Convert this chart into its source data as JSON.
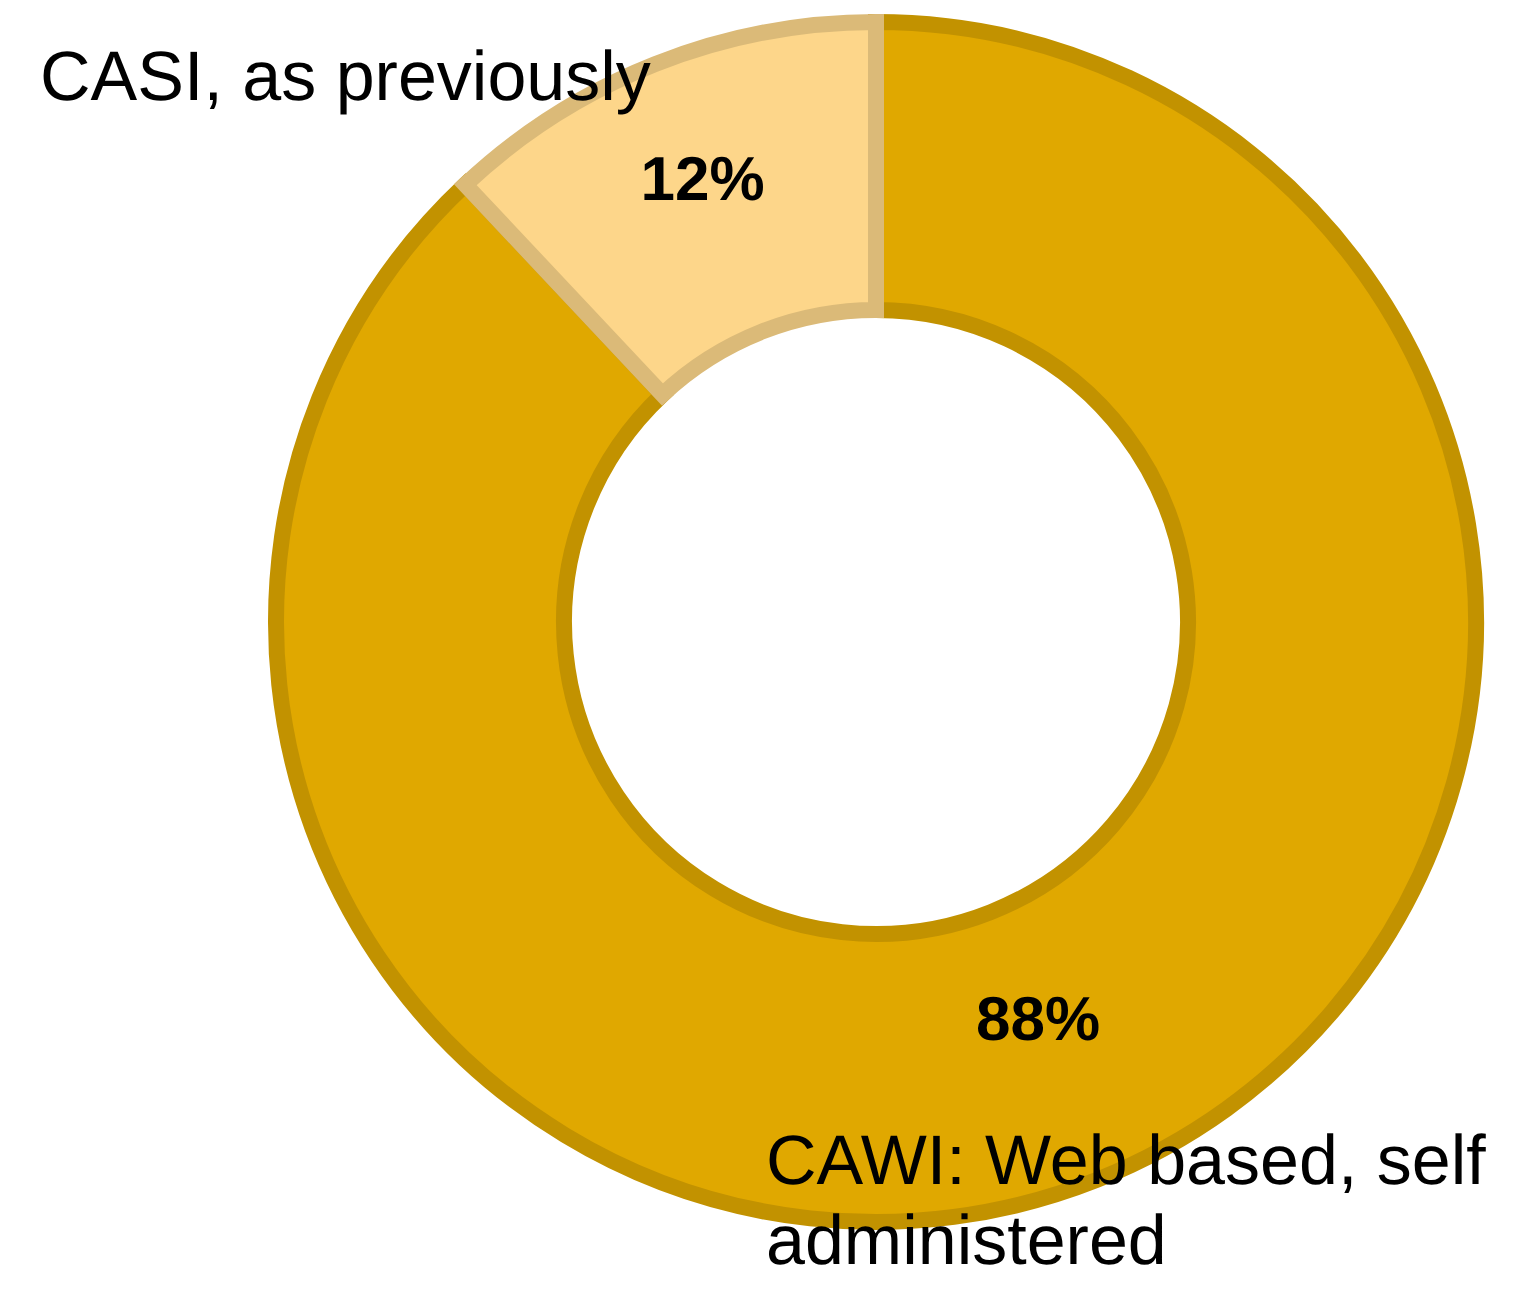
{
  "chart_data": {
    "type": "donut",
    "categories": [
      "CAWI: Web based, self administered",
      "CASI, as previously"
    ],
    "values": [
      88,
      12
    ],
    "colors": [
      "#e0a800",
      "#fdd68a"
    ],
    "value_labels": [
      "88%",
      "12%"
    ]
  }
}
